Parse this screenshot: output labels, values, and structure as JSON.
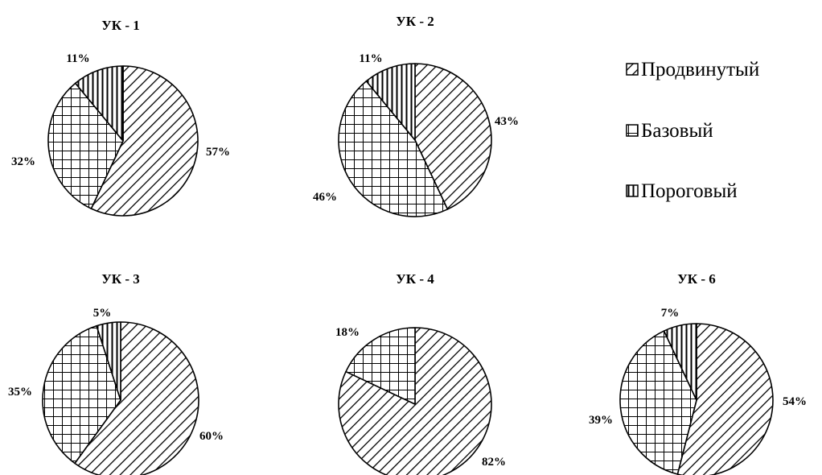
{
  "chart_data": {
    "type": "pie",
    "legend": {
      "placement": "right",
      "entries": [
        {
          "key": "advanced",
          "label": "Продвинутый",
          "pattern": "diagonal-hatch"
        },
        {
          "key": "basic",
          "label": "Базовый",
          "pattern": "grid"
        },
        {
          "key": "threshold",
          "label": "Пороговый",
          "pattern": "vertical-lines"
        }
      ]
    },
    "colors": {
      "stroke": "#000000",
      "background": "#ffffff"
    },
    "charts": [
      {
        "id": "uk1",
        "title": "УК - 1",
        "slices": [
          {
            "key": "advanced",
            "value": 57,
            "label": "57%"
          },
          {
            "key": "basic",
            "value": 32,
            "label": "32%"
          },
          {
            "key": "threshold",
            "value": 11,
            "label": "11%"
          }
        ]
      },
      {
        "id": "uk2",
        "title": "УК - 2",
        "slices": [
          {
            "key": "advanced",
            "value": 43,
            "label": "43%"
          },
          {
            "key": "basic",
            "value": 46,
            "label": "46%"
          },
          {
            "key": "threshold",
            "value": 11,
            "label": "11%"
          }
        ]
      },
      {
        "id": "uk3",
        "title": "УК - 3",
        "slices": [
          {
            "key": "advanced",
            "value": 60,
            "label": "60%"
          },
          {
            "key": "basic",
            "value": 35,
            "label": "35%"
          },
          {
            "key": "threshold",
            "value": 5,
            "label": "5%"
          }
        ]
      },
      {
        "id": "uk4",
        "title": "УК - 4",
        "slices": [
          {
            "key": "advanced",
            "value": 82,
            "label": "82%"
          },
          {
            "key": "basic",
            "value": 18,
            "label": "18%"
          },
          {
            "key": "threshold",
            "value": 0,
            "label": ""
          }
        ]
      },
      {
        "id": "uk6",
        "title": "УК - 6",
        "slices": [
          {
            "key": "advanced",
            "value": 54,
            "label": "54%"
          },
          {
            "key": "basic",
            "value": 39,
            "label": "39%"
          },
          {
            "key": "threshold",
            "value": 7,
            "label": "7%"
          }
        ]
      }
    ]
  }
}
